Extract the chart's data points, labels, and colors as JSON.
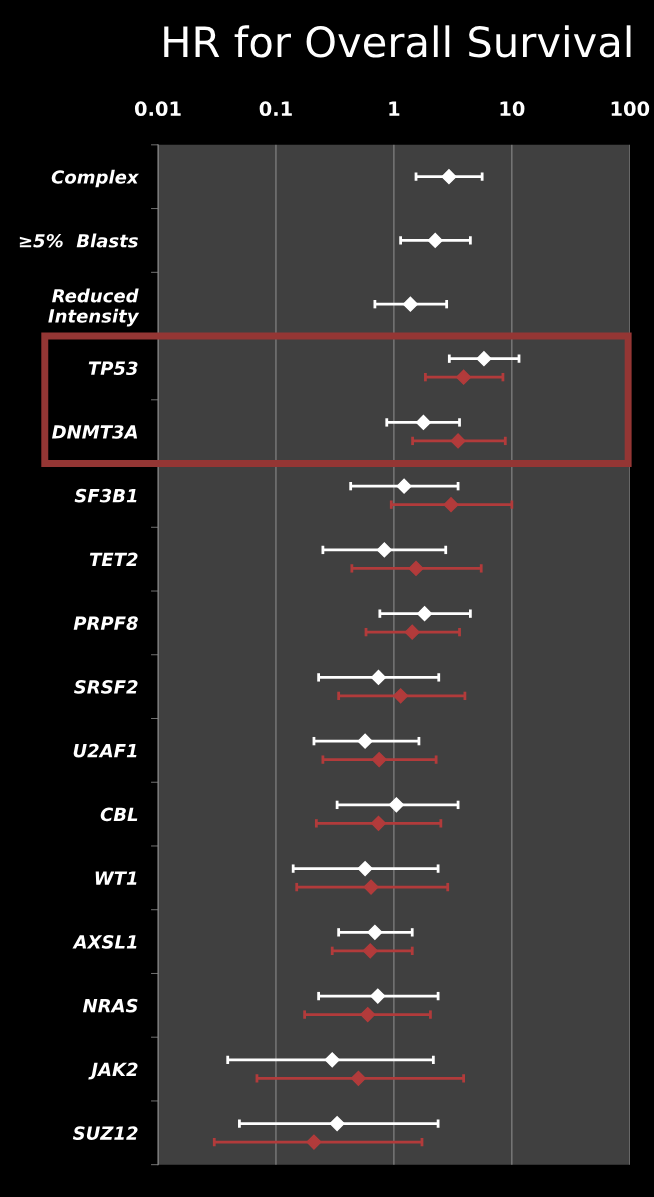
{
  "chart_data": {
    "type": "scatter",
    "title": "HR for Overall Survival",
    "categories": [
      "Complex",
      "≥5%  Blasts",
      "Reduced\nIntensity",
      "TP53",
      "DNMT3A",
      "SF3B1",
      "TET2",
      "PRPF8",
      "SRSF2",
      "U2AF1",
      "CBL",
      "WT1",
      "AXSL1",
      "NRAS",
      "JAK2",
      "SUZ12"
    ],
    "series": [
      {
        "color": "#ffffff",
        "values": [
          2.93,
          2.24,
          1.38,
          5.8,
          1.78,
          1.22,
          0.83,
          1.82,
          0.74,
          0.57,
          1.05,
          0.57,
          0.69,
          0.73,
          0.3,
          0.33
        ],
        "errors": [
          [
            1.54,
            5.6
          ],
          [
            1.14,
            4.45
          ],
          [
            0.69,
            2.8
          ],
          [
            2.95,
            11.5
          ],
          [
            0.87,
            3.6
          ],
          [
            0.43,
            3.5
          ],
          [
            0.25,
            2.75
          ],
          [
            0.76,
            4.45
          ],
          [
            0.23,
            2.4
          ],
          [
            0.21,
            1.63
          ],
          [
            0.33,
            3.5
          ],
          [
            0.14,
            2.37
          ],
          [
            0.34,
            1.43
          ],
          [
            0.23,
            2.37
          ],
          [
            0.039,
            2.16
          ],
          [
            0.049,
            2.37
          ]
        ]
      },
      {
        "color": "#b23b3b",
        "values": [
          null,
          null,
          null,
          3.9,
          3.5,
          3.05,
          1.54,
          1.43,
          1.14,
          0.75,
          0.74,
          0.64,
          0.63,
          0.6,
          0.5,
          0.21
        ],
        "errors": [
          null,
          null,
          null,
          [
            1.85,
            8.4
          ],
          [
            1.44,
            8.8
          ],
          [
            0.95,
            10
          ],
          [
            0.44,
            5.5
          ],
          [
            0.58,
            3.6
          ],
          [
            0.34,
            4.0
          ],
          [
            0.25,
            2.28
          ],
          [
            0.22,
            2.5
          ],
          [
            0.15,
            2.86
          ],
          [
            0.3,
            1.43
          ],
          [
            0.175,
            2.04
          ],
          [
            0.069,
            3.9
          ],
          [
            0.03,
            1.73
          ]
        ]
      }
    ],
    "orientation": "horizontal",
    "log": "x",
    "xlim": [
      0.01,
      100
    ],
    "xticks": [
      0.01,
      0.1,
      1,
      10,
      100
    ],
    "grid": "x",
    "marker": "diamond"
  }
}
